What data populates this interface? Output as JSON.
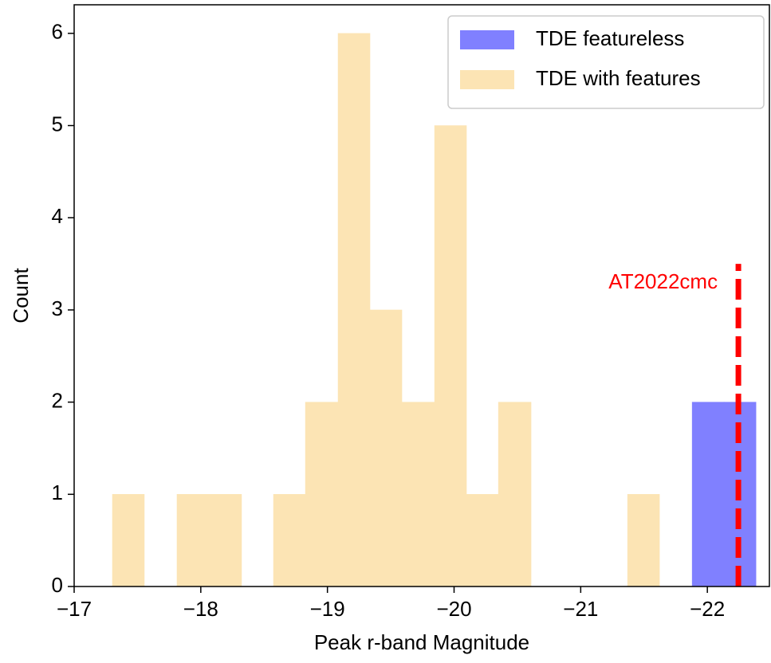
{
  "chart_data": {
    "type": "histogram",
    "xlabel": "Peak r-band Magnitude",
    "ylabel": "Count",
    "xlim": [
      -17,
      -22.49
    ],
    "ylim": [
      0,
      6.31
    ],
    "xticks": [
      {
        "value": -17,
        "label": "−17"
      },
      {
        "value": -18,
        "label": "−18"
      },
      {
        "value": -19,
        "label": "−19"
      },
      {
        "value": -20,
        "label": "−20"
      },
      {
        "value": -21,
        "label": "−21"
      },
      {
        "value": -22,
        "label": "−22"
      }
    ],
    "yticks": [
      0,
      1,
      2,
      3,
      4,
      5,
      6
    ],
    "legend": "upper right",
    "series": [
      {
        "name": "TDE featureless",
        "color": "#8080ff",
        "bins": [
          -21.88,
          -22.132,
          -22.384
        ],
        "values": [
          2,
          2
        ]
      },
      {
        "name": "TDE with features",
        "color": "#fce4b4",
        "bins": [
          -17.302,
          -17.554,
          -17.812,
          -18.064,
          -18.322,
          -18.574,
          -18.826,
          -19.084,
          -19.336,
          -19.588,
          -19.846,
          -20.098,
          -20.35,
          -20.608,
          -20.86,
          -21.11,
          -21.37,
          -21.622
        ],
        "values": [
          1,
          0,
          1,
          1,
          0,
          1,
          2,
          6,
          3,
          2,
          5,
          1,
          2,
          0,
          0,
          0,
          1
        ]
      }
    ],
    "annotations": [
      {
        "label": "AT2022cmc",
        "x": -22.245,
        "ymax": 3.5,
        "color": "#ff0000"
      }
    ]
  }
}
